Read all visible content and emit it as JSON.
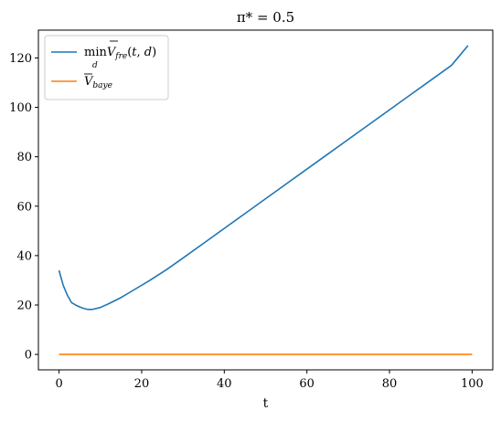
{
  "chart_data": {
    "type": "line",
    "title": "π* = 0.5",
    "xlabel": "t",
    "ylabel": "",
    "xlim": [
      -5,
      105
    ],
    "ylim": [
      -6.25,
      131.25
    ],
    "x_ticks": [
      0,
      20,
      40,
      60,
      80,
      100
    ],
    "y_ticks": [
      0,
      20,
      40,
      60,
      80,
      100,
      120
    ],
    "grid": false,
    "legend_position": "upper left",
    "series": [
      {
        "name": "min_d V̄_fre(t, d)",
        "color": "#1f77b4",
        "x": [
          0,
          1,
          2,
          3,
          4,
          5,
          6,
          7,
          8,
          10,
          12,
          15,
          18,
          22,
          26,
          30,
          35,
          40,
          45,
          50,
          55,
          60,
          65,
          70,
          75,
          80,
          85,
          90,
          95,
          99
        ],
        "y": [
          34,
          28,
          24,
          21,
          20,
          19.2,
          18.6,
          18.2,
          18.2,
          19,
          20.5,
          23,
          26,
          30,
          34.3,
          39,
          45,
          51,
          57,
          63,
          69,
          75,
          81,
          87,
          93,
          99,
          105,
          111,
          117,
          125
        ]
      },
      {
        "name": "V̄_baye",
        "color": "#ff7f0e",
        "x": [
          0,
          100
        ],
        "y": [
          0,
          0
        ]
      }
    ]
  }
}
